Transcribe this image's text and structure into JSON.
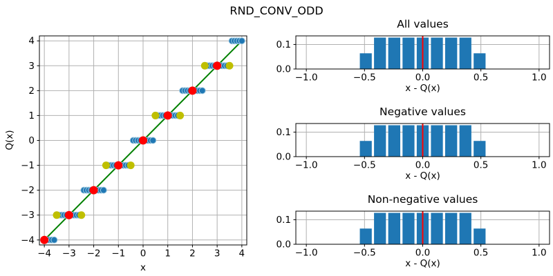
{
  "title": "RND_CONV_ODD",
  "colors": {
    "bar_blue": "#1f77b4",
    "marker_edge_blue": "#9ecae1",
    "tie_yellow": "#bfbf00",
    "center_red": "#ff0000",
    "identity_green": "#008000",
    "grid_gray": "#b0b0b0"
  },
  "chart_data": [
    {
      "type": "scatter",
      "name": "quantization-function-plot",
      "title": "",
      "xlabel": "x",
      "ylabel": "Q(x)",
      "xlim": [
        -4.2,
        4.2
      ],
      "ylim": [
        -4.2,
        4.2
      ],
      "grid": true,
      "xticks": {
        "values": [
          -4,
          -3,
          -2,
          -1,
          0,
          1,
          2,
          3,
          4
        ],
        "labels": [
          "−4",
          "−3",
          "−2",
          "−1",
          "0",
          "1",
          "2",
          "3",
          "4"
        ]
      },
      "yticks": {
        "values": [
          -4,
          -3,
          -2,
          -1,
          0,
          1,
          2,
          3,
          4
        ],
        "labels": [
          "−4",
          "−3",
          "−2",
          "−1",
          "0",
          "1",
          "2",
          "3",
          "4"
        ]
      },
      "series": [
        {
          "name": "identity-line",
          "kind": "line",
          "color": "#008000",
          "width": 2,
          "points": [
            [
              -4,
              -4
            ],
            [
              4,
              4
            ]
          ]
        },
        {
          "name": "quantized-samples",
          "kind": "dot-clusters",
          "color": "#1f77b4",
          "edge_color": "#9ecae1",
          "marker_radius": 4.5,
          "step": 0.1,
          "clusters": [
            {
              "level": -4,
              "from": -4.0,
              "to": -3.6
            },
            {
              "level": -3,
              "from": -3.5,
              "to": -2.5
            },
            {
              "level": -2,
              "from": -2.4,
              "to": -1.6
            },
            {
              "level": -1,
              "from": -1.5,
              "to": -0.5
            },
            {
              "level": 0,
              "from": -0.4,
              "to": 0.4
            },
            {
              "level": 1,
              "from": 0.5,
              "to": 1.5
            },
            {
              "level": 2,
              "from": 1.6,
              "to": 2.4
            },
            {
              "level": 3,
              "from": 2.5,
              "to": 3.5
            },
            {
              "level": 4,
              "from": 3.6,
              "to": 4.0
            }
          ]
        },
        {
          "name": "tie-to-odd-points",
          "kind": "dots",
          "color": "#bfbf00",
          "marker_radius": 5.5,
          "points": [
            [
              -3.5,
              -3
            ],
            [
              -2.5,
              -3
            ],
            [
              -1.5,
              -1
            ],
            [
              -0.5,
              -1
            ],
            [
              0.5,
              1
            ],
            [
              1.5,
              1
            ],
            [
              2.5,
              3
            ],
            [
              3.5,
              3
            ]
          ]
        },
        {
          "name": "level-center-points",
          "kind": "dots",
          "color": "#ff0000",
          "marker_radius": 6,
          "points": [
            [
              -4,
              -4
            ],
            [
              -3,
              -3
            ],
            [
              -2,
              -2
            ],
            [
              -1,
              -1
            ],
            [
              0,
              0
            ],
            [
              1,
              1
            ],
            [
              2,
              2
            ],
            [
              3,
              3
            ]
          ]
        }
      ]
    },
    {
      "type": "bar",
      "name": "error-histogram-all",
      "title": "All values",
      "xlabel": "x - Q(x)",
      "xlim": [
        -1.09,
        1.09
      ],
      "ylim": [
        0,
        0.135
      ],
      "grid": true,
      "xticks": {
        "values": [
          -1,
          -0.5,
          0,
          0.5,
          1
        ],
        "labels": [
          "−1.0",
          "−0.5",
          "0.0",
          "0.5",
          "1.0"
        ]
      },
      "yticks": {
        "values": [
          0,
          0.1
        ],
        "labels": [
          "0.0",
          "0.1"
        ]
      },
      "bin_edges": [
        -0.55,
        -0.428,
        -0.306,
        -0.183,
        -0.061,
        0.061,
        0.183,
        0.306,
        0.428,
        0.55
      ],
      "heights": [
        0.064,
        0.128,
        0.128,
        0.128,
        0.128,
        0.128,
        0.128,
        0.128,
        0.064
      ],
      "bar_color": "#1f77b4",
      "vline": {
        "x": 0,
        "color": "#ff0000"
      }
    },
    {
      "type": "bar",
      "name": "error-histogram-negative",
      "title": "Negative values",
      "xlabel": "x - Q(x)",
      "xlim": [
        -1.09,
        1.09
      ],
      "ylim": [
        0,
        0.135
      ],
      "grid": true,
      "xticks": {
        "values": [
          -1,
          -0.5,
          0,
          0.5,
          1
        ],
        "labels": [
          "−1.0",
          "−0.5",
          "0.0",
          "0.5",
          "1.0"
        ]
      },
      "yticks": {
        "values": [
          0,
          0.1
        ],
        "labels": [
          "0.0",
          "0.1"
        ]
      },
      "bin_edges": [
        -0.55,
        -0.428,
        -0.306,
        -0.183,
        -0.061,
        0.061,
        0.183,
        0.306,
        0.428,
        0.55
      ],
      "heights": [
        0.064,
        0.128,
        0.128,
        0.128,
        0.128,
        0.128,
        0.128,
        0.128,
        0.064
      ],
      "bar_color": "#1f77b4",
      "vline": {
        "x": 0,
        "color": "#ff0000"
      }
    },
    {
      "type": "bar",
      "name": "error-histogram-nonnegative",
      "title": "Non-negative values",
      "xlabel": "x - Q(x)",
      "xlim": [
        -1.09,
        1.09
      ],
      "ylim": [
        0,
        0.135
      ],
      "grid": true,
      "xticks": {
        "values": [
          -1,
          -0.5,
          0,
          0.5,
          1
        ],
        "labels": [
          "−1.0",
          "−0.5",
          "0.0",
          "0.5",
          "1.0"
        ]
      },
      "yticks": {
        "values": [
          0,
          0.1
        ],
        "labels": [
          "0.0",
          "0.1"
        ]
      },
      "bin_edges": [
        -0.55,
        -0.428,
        -0.306,
        -0.183,
        -0.061,
        0.061,
        0.183,
        0.306,
        0.428,
        0.55
      ],
      "heights": [
        0.064,
        0.128,
        0.128,
        0.128,
        0.128,
        0.128,
        0.128,
        0.128,
        0.064
      ],
      "bar_color": "#1f77b4",
      "vline": {
        "x": 0,
        "color": "#ff0000"
      }
    }
  ]
}
